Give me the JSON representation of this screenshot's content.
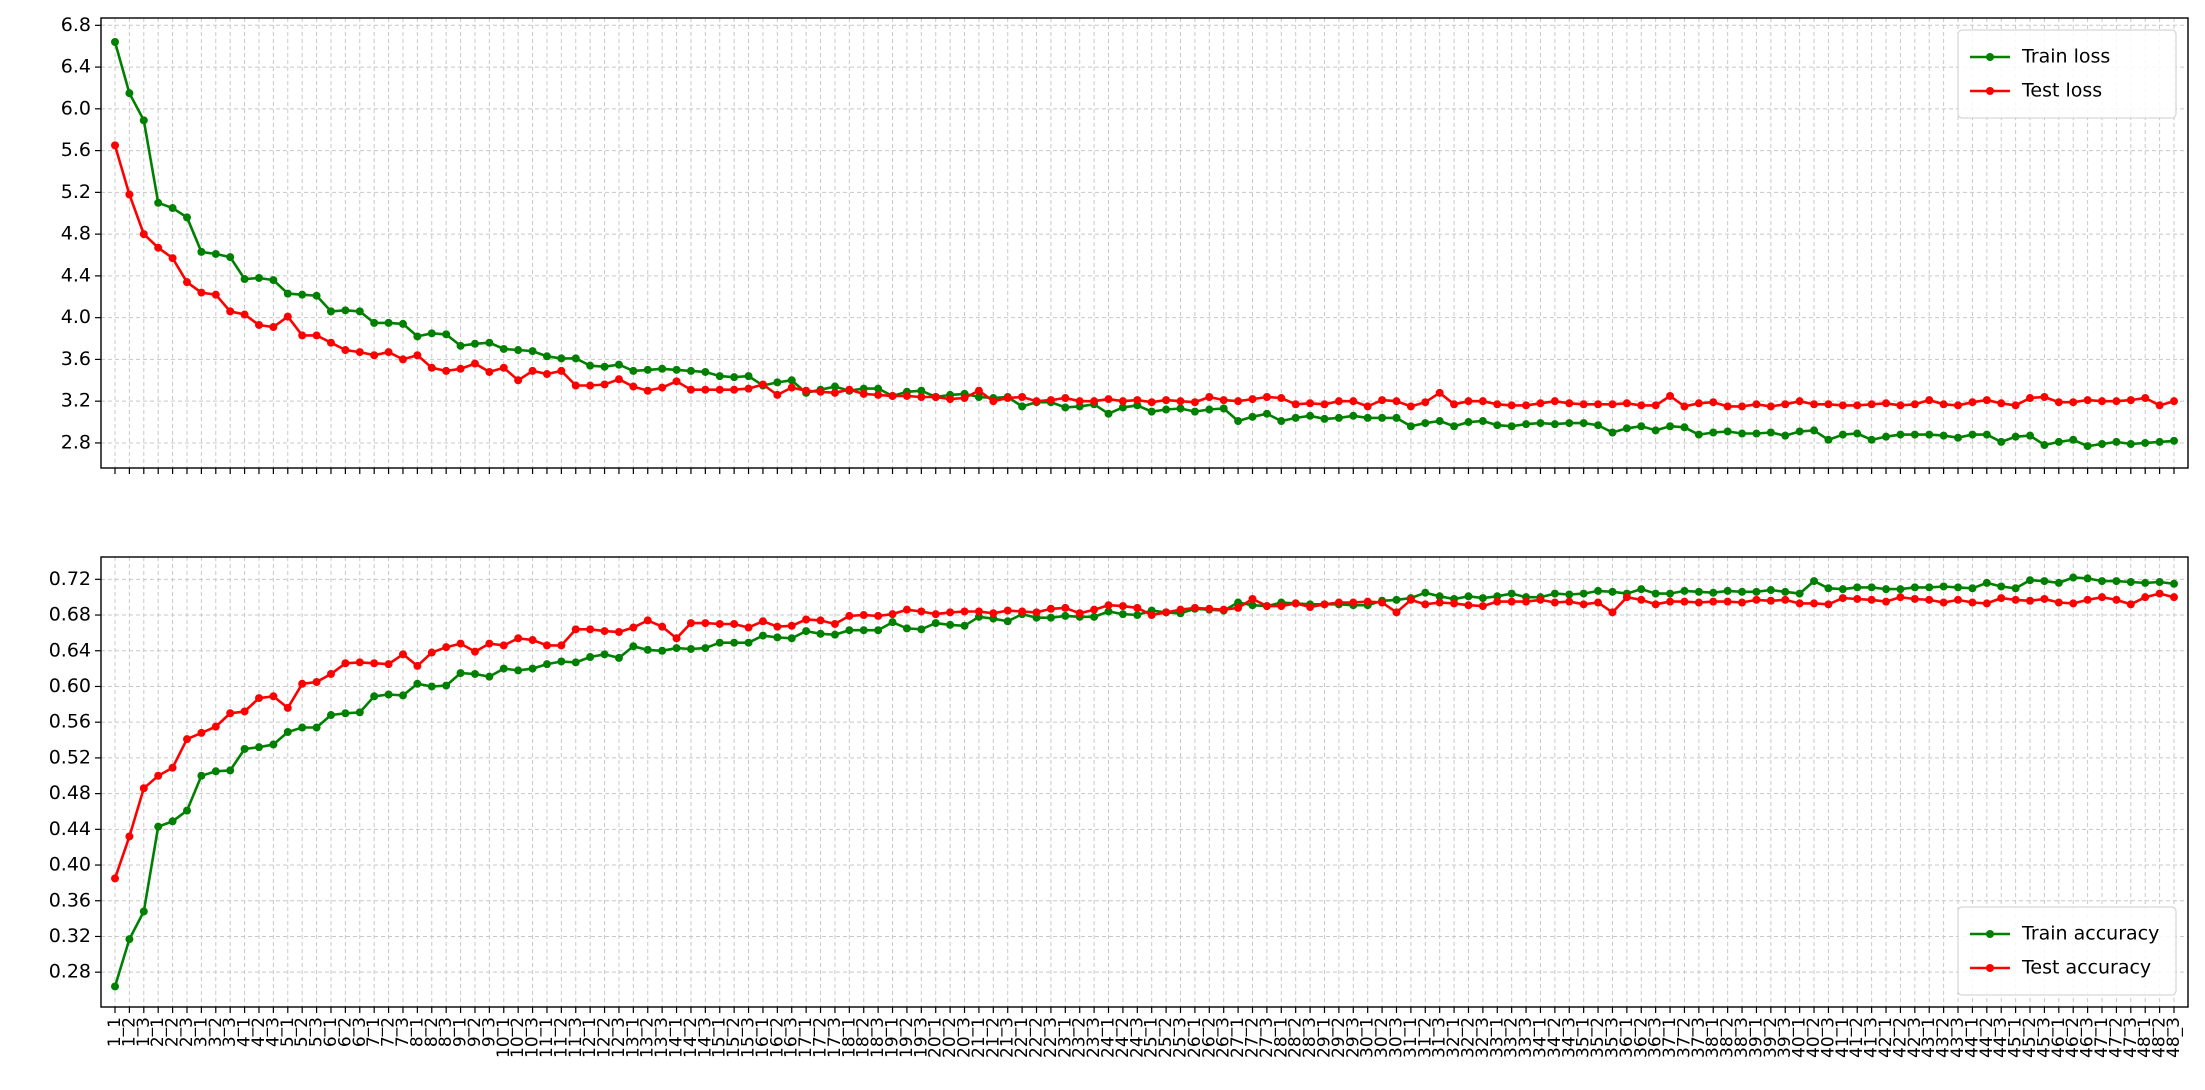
{
  "chart_data": [
    {
      "type": "line",
      "ylim": [
        2.56,
        6.87
      ],
      "yticks": [
        2.8,
        3.2,
        3.6,
        {
          "value": 4,
          "label": "4.0"
        },
        4.4,
        4.8,
        5.2,
        5.6,
        {
          "value": 6,
          "label": "6.0"
        },
        6.4,
        6.8
      ],
      "grid": true,
      "legend": "upper right",
      "series": [
        {
          "name": "Train loss",
          "color": "#008000",
          "values": [
            6.64,
            6.15,
            5.89,
            5.1,
            5.05,
            4.96,
            4.63,
            4.61,
            4.58,
            4.37,
            4.38,
            4.36,
            4.23,
            4.22,
            4.21,
            4.06,
            4.07,
            4.06,
            3.95,
            3.95,
            3.94,
            3.82,
            3.85,
            3.84,
            3.73,
            3.75,
            3.76,
            3.7,
            3.69,
            3.68,
            3.63,
            3.61,
            3.61,
            3.54,
            3.53,
            3.55,
            3.49,
            3.5,
            3.51,
            3.5,
            3.49,
            3.48,
            3.44,
            3.43,
            3.44,
            3.35,
            3.38,
            3.4,
            3.28,
            3.31,
            3.34,
            3.3,
            3.32,
            3.32,
            3.25,
            3.29,
            3.3,
            3.24,
            3.26,
            3.27,
            3.24,
            3.23,
            3.24,
            3.15,
            3.19,
            3.19,
            3.14,
            3.15,
            3.17,
            3.08,
            3.14,
            3.16,
            3.1,
            3.12,
            3.13,
            3.1,
            3.12,
            3.13,
            3.01,
            3.05,
            3.08,
            3.01,
            3.04,
            3.06,
            3.03,
            3.04,
            3.06,
            3.04,
            3.04,
            3.04,
            2.96,
            2.99,
            3.01,
            2.96,
            3.0,
            3.01,
            2.97,
            2.96,
            2.98,
            2.99,
            2.98,
            2.99,
            2.99,
            2.97,
            2.9,
            2.94,
            2.96,
            2.92,
            2.96,
            2.95,
            2.88,
            2.9,
            2.91,
            2.89,
            2.89,
            2.9,
            2.87,
            2.91,
            2.92,
            2.83,
            2.88,
            2.89,
            2.83,
            2.86,
            2.88,
            2.88,
            2.88,
            2.87,
            2.85,
            2.88,
            2.88,
            2.81,
            2.86,
            2.87,
            2.78,
            2.81,
            2.83,
            2.77,
            2.79,
            2.81,
            2.79,
            2.8,
            2.81,
            2.82
          ]
        },
        {
          "name": "Test loss",
          "color": "#ff0000",
          "values": [
            5.65,
            5.18,
            4.8,
            4.67,
            4.57,
            4.34,
            4.24,
            4.22,
            4.06,
            4.03,
            3.93,
            3.91,
            4.01,
            3.83,
            3.83,
            3.76,
            3.69,
            3.67,
            3.64,
            3.67,
            3.6,
            3.64,
            3.52,
            3.49,
            3.51,
            3.56,
            3.48,
            3.52,
            3.4,
            3.49,
            3.46,
            3.49,
            3.35,
            3.35,
            3.36,
            3.41,
            3.34,
            3.3,
            3.33,
            3.39,
            3.31,
            3.31,
            3.31,
            3.31,
            3.32,
            3.36,
            3.26,
            3.33,
            3.3,
            3.29,
            3.28,
            3.31,
            3.27,
            3.26,
            3.25,
            3.25,
            3.24,
            3.24,
            3.22,
            3.23,
            3.3,
            3.2,
            3.23,
            3.24,
            3.2,
            3.21,
            3.23,
            3.2,
            3.2,
            3.22,
            3.2,
            3.21,
            3.19,
            3.21,
            3.2,
            3.19,
            3.24,
            3.21,
            3.2,
            3.22,
            3.24,
            3.23,
            3.17,
            3.18,
            3.17,
            3.2,
            3.2,
            3.15,
            3.21,
            3.2,
            3.15,
            3.19,
            3.28,
            3.17,
            3.2,
            3.2,
            3.17,
            3.16,
            3.16,
            3.18,
            3.2,
            3.18,
            3.17,
            3.17,
            3.17,
            3.18,
            3.16,
            3.16,
            3.25,
            3.15,
            3.18,
            3.19,
            3.15,
            3.15,
            3.17,
            3.15,
            3.17,
            3.2,
            3.17,
            3.17,
            3.16,
            3.16,
            3.17,
            3.18,
            3.16,
            3.17,
            3.21,
            3.17,
            3.16,
            3.19,
            3.21,
            3.18,
            3.16,
            3.23,
            3.24,
            3.19,
            3.19,
            3.21,
            3.2,
            3.2,
            3.21,
            3.23,
            3.16,
            3.2
          ]
        }
      ]
    },
    {
      "type": "line",
      "categories": [
        "1_1",
        "1_2",
        "1_3",
        "2_1",
        "2_2",
        "2_3",
        "3_1",
        "3_2",
        "3_3",
        "4_1",
        "4_2",
        "4_3",
        "5_1",
        "5_2",
        "5_3",
        "6_1",
        "6_2",
        "6_3",
        "7_1",
        "7_2",
        "7_3",
        "8_1",
        "8_2",
        "8_3",
        "9_1",
        "9_2",
        "9_3",
        "10_1",
        "10_2",
        "10_3",
        "11_1",
        "11_2",
        "11_3",
        "12_1",
        "12_2",
        "12_3",
        "13_1",
        "13_2",
        "13_3",
        "14_1",
        "14_2",
        "14_3",
        "15_1",
        "15_2",
        "15_3",
        "16_1",
        "16_2",
        "16_3",
        "17_1",
        "17_2",
        "17_3",
        "18_1",
        "18_2",
        "18_3",
        "19_1",
        "19_2",
        "19_3",
        "20_1",
        "20_2",
        "20_3",
        "21_1",
        "21_2",
        "21_3",
        "22_1",
        "22_2",
        "22_3",
        "23_1",
        "23_2",
        "23_3",
        "24_1",
        "24_2",
        "24_3",
        "25_1",
        "25_2",
        "25_3",
        "26_1",
        "26_2",
        "26_3",
        "27_1",
        "27_2",
        "27_3",
        "28_1",
        "28_2",
        "28_3",
        "29_1",
        "29_2",
        "29_3",
        "30_1",
        "30_2",
        "30_3",
        "31_1",
        "31_2",
        "31_3",
        "32_1",
        "32_2",
        "32_3",
        "33_1",
        "33_2",
        "33_3",
        "34_1",
        "34_2",
        "34_3",
        "35_1",
        "35_2",
        "35_3",
        "36_1",
        "36_2",
        "36_3",
        "37_1",
        "37_2",
        "37_3",
        "38_1",
        "38_2",
        "38_3",
        "39_1",
        "39_2",
        "39_3",
        "40_1",
        "40_2",
        "40_3",
        "41_1",
        "41_2",
        "41_3",
        "42_1",
        "42_2",
        "42_3",
        "43_1",
        "43_2",
        "43_3",
        "44_1",
        "44_2",
        "44_3",
        "45_1",
        "45_2",
        "45_3",
        "46_1",
        "46_2",
        "46_3",
        "47_1",
        "47_2",
        "47_3",
        "48_1",
        "48_2",
        "48_3"
      ],
      "ylim": [
        0.241,
        0.745
      ],
      "yticks": [
        0.28,
        0.32,
        0.36,
        {
          "value": 0.4,
          "label": "0.40"
        },
        0.44,
        0.48,
        0.52,
        0.56,
        {
          "value": 0.6,
          "label": "0.60"
        },
        0.64,
        0.68,
        0.72
      ],
      "grid": true,
      "legend": "lower right",
      "series": [
        {
          "name": "Train accuracy",
          "color": "#008000",
          "values": [
            0.264,
            0.317,
            0.348,
            0.443,
            0.449,
            0.461,
            0.5,
            0.505,
            0.506,
            0.53,
            0.532,
            0.535,
            0.549,
            0.554,
            0.554,
            0.568,
            0.57,
            0.571,
            0.589,
            0.591,
            0.59,
            0.603,
            0.6,
            0.601,
            0.615,
            0.614,
            0.611,
            0.62,
            0.618,
            0.62,
            0.625,
            0.628,
            0.627,
            0.633,
            0.636,
            0.632,
            0.645,
            0.641,
            0.64,
            0.643,
            0.642,
            0.643,
            0.649,
            0.649,
            0.649,
            0.657,
            0.655,
            0.654,
            0.662,
            0.659,
            0.658,
            0.663,
            0.663,
            0.663,
            0.672,
            0.665,
            0.664,
            0.671,
            0.669,
            0.668,
            0.678,
            0.676,
            0.673,
            0.681,
            0.677,
            0.677,
            0.679,
            0.678,
            0.678,
            0.684,
            0.681,
            0.68,
            0.685,
            0.683,
            0.682,
            0.687,
            0.686,
            0.685,
            0.694,
            0.691,
            0.69,
            0.694,
            0.693,
            0.692,
            0.692,
            0.692,
            0.691,
            0.691,
            0.696,
            0.697,
            0.699,
            0.705,
            0.701,
            0.698,
            0.701,
            0.699,
            0.701,
            0.704,
            0.7,
            0.7,
            0.704,
            0.703,
            0.704,
            0.707,
            0.706,
            0.704,
            0.709,
            0.704,
            0.704,
            0.707,
            0.706,
            0.705,
            0.707,
            0.706,
            0.706,
            0.708,
            0.706,
            0.704,
            0.718,
            0.71,
            0.709,
            0.711,
            0.711,
            0.709,
            0.709,
            0.711,
            0.711,
            0.712,
            0.711,
            0.71,
            0.716,
            0.712,
            0.71,
            0.719,
            0.718,
            0.716,
            0.722,
            0.721,
            0.718,
            0.718,
            0.717,
            0.716,
            0.717,
            0.715
          ]
        },
        {
          "name": "Test accuracy",
          "color": "#ff0000",
          "values": [
            0.385,
            0.432,
            0.486,
            0.5,
            0.509,
            0.541,
            0.548,
            0.555,
            0.57,
            0.572,
            0.587,
            0.589,
            0.576,
            0.603,
            0.605,
            0.614,
            0.626,
            0.627,
            0.626,
            0.625,
            0.636,
            0.623,
            0.638,
            0.644,
            0.648,
            0.639,
            0.648,
            0.646,
            0.654,
            0.652,
            0.646,
            0.646,
            0.664,
            0.664,
            0.662,
            0.661,
            0.666,
            0.674,
            0.667,
            0.654,
            0.671,
            0.671,
            0.67,
            0.67,
            0.666,
            0.673,
            0.667,
            0.668,
            0.675,
            0.674,
            0.67,
            0.679,
            0.68,
            0.679,
            0.681,
            0.686,
            0.684,
            0.681,
            0.683,
            0.684,
            0.684,
            0.682,
            0.685,
            0.684,
            0.683,
            0.687,
            0.688,
            0.682,
            0.686,
            0.691,
            0.69,
            0.688,
            0.68,
            0.683,
            0.686,
            0.688,
            0.687,
            0.686,
            0.688,
            0.698,
            0.69,
            0.69,
            0.693,
            0.689,
            0.692,
            0.694,
            0.694,
            0.695,
            0.694,
            0.683,
            0.697,
            0.692,
            0.694,
            0.693,
            0.691,
            0.69,
            0.695,
            0.695,
            0.695,
            0.697,
            0.694,
            0.695,
            0.692,
            0.694,
            0.683,
            0.7,
            0.697,
            0.692,
            0.695,
            0.695,
            0.694,
            0.695,
            0.695,
            0.694,
            0.697,
            0.696,
            0.697,
            0.693,
            0.693,
            0.692,
            0.699,
            0.698,
            0.697,
            0.695,
            0.7,
            0.698,
            0.697,
            0.694,
            0.697,
            0.694,
            0.693,
            0.699,
            0.697,
            0.696,
            0.698,
            0.694,
            0.693,
            0.697,
            0.7,
            0.697,
            0.692,
            0.7,
            0.704,
            0.7
          ]
        }
      ]
    }
  ]
}
